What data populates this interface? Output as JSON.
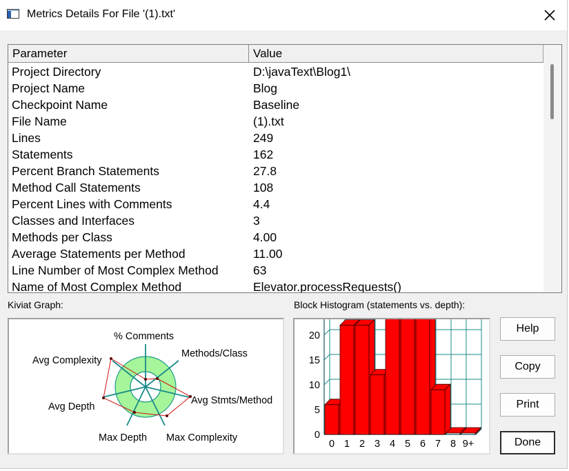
{
  "window": {
    "title": "Metrics Details For File '(1).txt'"
  },
  "table": {
    "headers": [
      "Parameter",
      "Value"
    ],
    "rows": [
      {
        "param": "Project Directory",
        "value": "D:\\javaText\\Blog1\\"
      },
      {
        "param": "Project Name",
        "value": "Blog"
      },
      {
        "param": "Checkpoint Name",
        "value": "Baseline"
      },
      {
        "param": "File Name",
        "value": "(1).txt"
      },
      {
        "param": "Lines",
        "value": "249"
      },
      {
        "param": "Statements",
        "value": "162"
      },
      {
        "param": "Percent Branch Statements",
        "value": "27.8"
      },
      {
        "param": "Method Call Statements",
        "value": "108"
      },
      {
        "param": "Percent Lines with Comments",
        "value": "4.4"
      },
      {
        "param": "Classes and Interfaces",
        "value": "3"
      },
      {
        "param": "Methods per Class",
        "value": "4.00"
      },
      {
        "param": "Average Statements per Method",
        "value": "11.00"
      },
      {
        "param": "Line Number of Most Complex Method",
        "value": "63"
      },
      {
        "param": "Name of Most Complex Method",
        "value": "Elevator.processRequests()"
      }
    ]
  },
  "kiviat": {
    "label": "Kiviat Graph:",
    "axes": [
      "% Comments",
      "Methods/Class",
      "Avg Stmts/Method",
      "Max Complexity",
      "Max Depth",
      "Avg Depth",
      "Avg Complexity"
    ],
    "colors": {
      "band": "#a6f59a",
      "band_edge": "#1a9a8a",
      "polygon": "#d01010"
    }
  },
  "histogram": {
    "label": "Block Histogram (statements vs. depth):",
    "bar_color": "#ff0000",
    "grid_color": "#1a8a8a"
  },
  "chart_data": {
    "type": "bar",
    "title": "Block Histogram (statements vs. depth):",
    "categories": [
      "0",
      "1",
      "2",
      "3",
      "4",
      "5",
      "6",
      "7",
      "8",
      "9+"
    ],
    "values": [
      6,
      22,
      22,
      12,
      26,
      30,
      28,
      9,
      0,
      0
    ],
    "ylim": [
      0,
      30
    ],
    "yticks": [
      "0",
      "5",
      "10",
      "15",
      "20",
      "25",
      "30"
    ],
    "grid": true
  },
  "buttons": {
    "help": "Help",
    "copy": "Copy",
    "print": "Print",
    "done": "Done"
  }
}
